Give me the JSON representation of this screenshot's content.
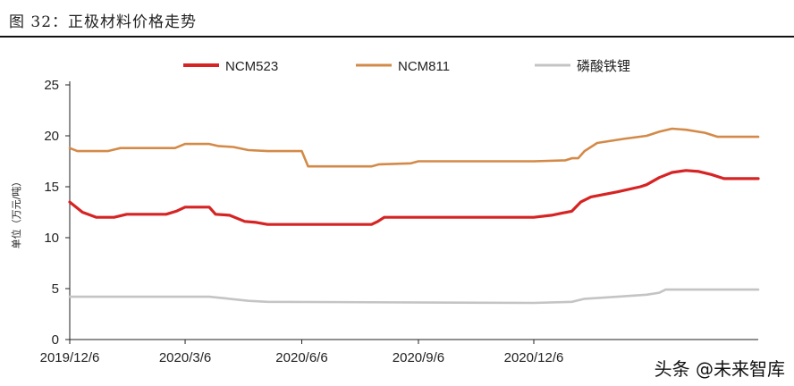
{
  "figure": {
    "title": "图 32：正极材料价格走势",
    "watermark": "头条 @未来智库"
  },
  "colors": {
    "NCM523": "#d62323",
    "NCM811": "#d38a48",
    "磷酸铁锂": "#c4c4c4",
    "axis": "#222222"
  },
  "chart_data": {
    "type": "line",
    "title": "",
    "xlabel": "",
    "ylabel": "单位（万元/吨）",
    "ylim": [
      0,
      25
    ],
    "yticks": [
      0,
      5,
      10,
      15,
      20,
      25
    ],
    "grid": false,
    "legend_position": "top",
    "x_tick_labels": [
      "2019/12/6",
      "2020/3/6",
      "2020/6/6",
      "2020/9/6",
      "2020/12/6"
    ],
    "x_tick_dates": [
      "2019-12-06",
      "2020-03-06",
      "2020-06-06",
      "2020-09-06",
      "2020-12-06"
    ],
    "x_range": [
      "2019-12-06",
      "2021-06-01"
    ],
    "series": [
      {
        "name": "NCM523",
        "points": [
          [
            "2019-12-06",
            13.5
          ],
          [
            "2019-12-16",
            12.5
          ],
          [
            "2019-12-27",
            12.0
          ],
          [
            "2020-01-10",
            12.0
          ],
          [
            "2020-01-20",
            12.3
          ],
          [
            "2020-02-20",
            12.3
          ],
          [
            "2020-02-28",
            12.6
          ],
          [
            "2020-03-06",
            13.0
          ],
          [
            "2020-03-25",
            13.0
          ],
          [
            "2020-03-30",
            12.3
          ],
          [
            "2020-04-10",
            12.2
          ],
          [
            "2020-04-22",
            11.6
          ],
          [
            "2020-05-01",
            11.5
          ],
          [
            "2020-05-10",
            11.3
          ],
          [
            "2020-07-31",
            11.3
          ],
          [
            "2020-08-05",
            11.6
          ],
          [
            "2020-08-10",
            12.0
          ],
          [
            "2020-12-06",
            12.0
          ],
          [
            "2020-12-20",
            12.2
          ],
          [
            "2020-12-28",
            12.4
          ],
          [
            "2021-01-05",
            12.6
          ],
          [
            "2021-01-12",
            13.5
          ],
          [
            "2021-01-20",
            14.0
          ],
          [
            "2021-02-10",
            14.5
          ],
          [
            "2021-02-28",
            15.0
          ],
          [
            "2021-03-05",
            15.2
          ],
          [
            "2021-03-15",
            15.9
          ],
          [
            "2021-03-25",
            16.4
          ],
          [
            "2021-04-05",
            16.6
          ],
          [
            "2021-04-15",
            16.5
          ],
          [
            "2021-04-25",
            16.2
          ],
          [
            "2021-05-05",
            15.8
          ],
          [
            "2021-06-01",
            15.8
          ]
        ]
      },
      {
        "name": "NCM811",
        "points": [
          [
            "2019-12-06",
            18.8
          ],
          [
            "2019-12-12",
            18.5
          ],
          [
            "2020-01-05",
            18.5
          ],
          [
            "2020-01-15",
            18.8
          ],
          [
            "2020-02-27",
            18.8
          ],
          [
            "2020-03-06",
            19.2
          ],
          [
            "2020-03-25",
            19.2
          ],
          [
            "2020-04-01",
            19.0
          ],
          [
            "2020-04-13",
            18.9
          ],
          [
            "2020-04-25",
            18.6
          ],
          [
            "2020-05-10",
            18.5
          ],
          [
            "2020-06-06",
            18.5
          ],
          [
            "2020-06-11",
            17.0
          ],
          [
            "2020-07-31",
            17.0
          ],
          [
            "2020-08-06",
            17.2
          ],
          [
            "2020-08-31",
            17.3
          ],
          [
            "2020-09-06",
            17.5
          ],
          [
            "2020-12-06",
            17.5
          ],
          [
            "2020-12-31",
            17.6
          ],
          [
            "2021-01-05",
            17.8
          ],
          [
            "2021-01-10",
            17.8
          ],
          [
            "2021-01-15",
            18.5
          ],
          [
            "2021-01-25",
            19.3
          ],
          [
            "2021-02-15",
            19.7
          ],
          [
            "2021-03-05",
            20.0
          ],
          [
            "2021-03-15",
            20.4
          ],
          [
            "2021-03-25",
            20.7
          ],
          [
            "2021-04-05",
            20.6
          ],
          [
            "2021-04-20",
            20.3
          ],
          [
            "2021-04-30",
            19.9
          ],
          [
            "2021-06-01",
            19.9
          ]
        ]
      },
      {
        "name": "磷酸铁锂",
        "points": [
          [
            "2019-12-06",
            4.2
          ],
          [
            "2020-03-25",
            4.2
          ],
          [
            "2020-04-10",
            4.0
          ],
          [
            "2020-04-25",
            3.8
          ],
          [
            "2020-05-10",
            3.7
          ],
          [
            "2020-12-06",
            3.6
          ],
          [
            "2021-01-05",
            3.7
          ],
          [
            "2021-01-15",
            4.0
          ],
          [
            "2021-02-10",
            4.2
          ],
          [
            "2021-03-05",
            4.4
          ],
          [
            "2021-03-15",
            4.6
          ],
          [
            "2021-03-20",
            4.9
          ],
          [
            "2021-06-01",
            4.9
          ]
        ]
      }
    ]
  }
}
